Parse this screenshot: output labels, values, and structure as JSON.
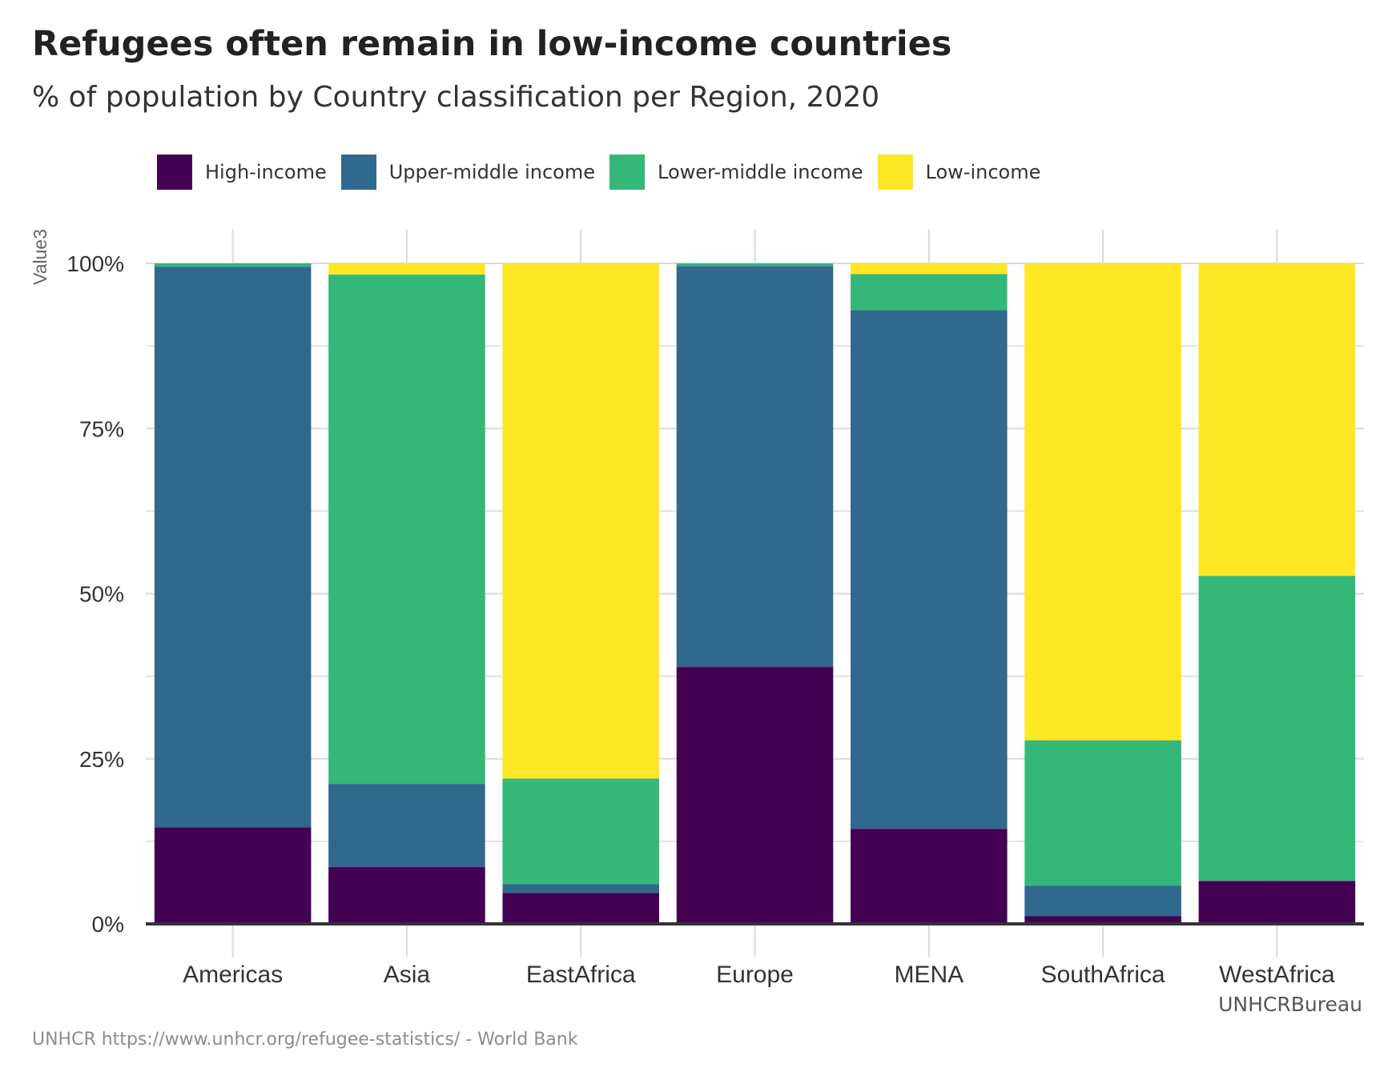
{
  "title": "Refugees often remain in low-income countries",
  "subtitle": "% of population by Country classification per Region, 2020",
  "facet_label": "UNHCRBureau",
  "caption": "UNHCR https://www.unhcr.org/refugee-statistics/ - World Bank",
  "legend": [
    {
      "name": "High-income",
      "color": "#440154"
    },
    {
      "name": "Upper-middle income",
      "color": "#31688E"
    },
    {
      "name": "Lower-middle income",
      "color": "#35B779"
    },
    {
      "name": "Low-income",
      "color": "#FDE725"
    }
  ],
  "chart_data": {
    "type": "bar",
    "stacked": true,
    "ylabel": "Value3",
    "xlabel": "",
    "ylim": [
      0,
      100
    ],
    "yticks": [
      "0%",
      "25%",
      "50%",
      "75%",
      "100%"
    ],
    "grid": true,
    "legend_position": "top",
    "categories": [
      "Americas",
      "Asia",
      "EastAfrica",
      "Europe",
      "MENA",
      "SouthAfrica",
      "WestAfrica"
    ],
    "series": [
      {
        "name": "High-income",
        "color": "#440154",
        "values": [
          14.6,
          8.6,
          4.7,
          38.9,
          14.4,
          1.2,
          6.5
        ]
      },
      {
        "name": "Upper-middle income",
        "color": "#31688E",
        "values": [
          84.9,
          12.6,
          1.3,
          60.7,
          78.5,
          4.6,
          0.0
        ]
      },
      {
        "name": "Lower-middle income",
        "color": "#35B779",
        "values": [
          0.5,
          77.1,
          16.0,
          0.4,
          5.5,
          22.0,
          46.2
        ]
      },
      {
        "name": "Low-income",
        "color": "#FDE725",
        "values": [
          0.0,
          1.7,
          78.0,
          0.0,
          1.6,
          72.2,
          47.3
        ]
      }
    ]
  }
}
